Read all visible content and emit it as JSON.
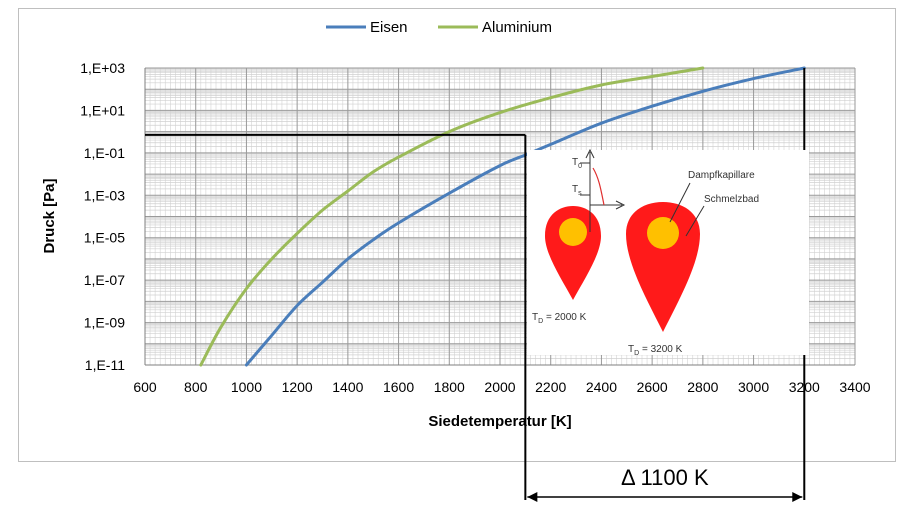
{
  "chart_data": {
    "type": "line",
    "xlabel": "Siedetemperatur [K]",
    "ylabel": "Druck [Pa]",
    "xlim": [
      600,
      3400
    ],
    "ylim_log10": [
      -11,
      3
    ],
    "y_scale": "log",
    "x_ticks": [
      600,
      800,
      1000,
      1200,
      1400,
      1600,
      1800,
      2000,
      2200,
      2400,
      2600,
      2800,
      3000,
      3200,
      3400
    ],
    "y_tick_labels": [
      "1,E-11",
      "1,E-09",
      "1,E-07",
      "1,E-05",
      "1,E-03",
      "1,E-01",
      "1,E+01",
      "1,E+03"
    ],
    "y_tick_exponents": [
      -11,
      -9,
      -7,
      -5,
      -3,
      -1,
      1,
      3
    ],
    "grid": true,
    "legend_position": "top-center",
    "series": [
      {
        "name": "Eisen",
        "color": "#4a7ebb",
        "x": [
          1000,
          1100,
          1200,
          1300,
          1400,
          1500,
          1600,
          1800,
          2000,
          2100,
          2200,
          2400,
          2600,
          2800,
          3000,
          3200
        ],
        "y_log10": [
          -11.0,
          -9.6,
          -8.2,
          -7.1,
          -6.0,
          -5.1,
          -4.3,
          -2.9,
          -1.6,
          -1.1,
          -0.6,
          0.4,
          1.2,
          1.9,
          2.5,
          3.0
        ]
      },
      {
        "name": "Aluminium",
        "color": "#9bbb59",
        "x": [
          820,
          900,
          1000,
          1100,
          1200,
          1300,
          1400,
          1500,
          1600,
          1800,
          2000,
          2200,
          2400,
          2600,
          2800
        ],
        "y_log10": [
          -11.0,
          -9.2,
          -7.4,
          -6.0,
          -4.8,
          -3.7,
          -2.8,
          -1.9,
          -1.2,
          0.0,
          0.9,
          1.6,
          2.2,
          2.6,
          3.0
        ]
      }
    ],
    "annotations": {
      "guide_pressure_log10": -0.15,
      "guide_x_points": [
        2100,
        3200
      ],
      "delta_label": "Δ 1100 K"
    },
    "inset": {
      "label_capillary": "Dampfkapillare",
      "label_meltpool": "Schmelzbad",
      "label_small": "T",
      "label_small_sub": "D",
      "label_small_value": " = 2000 K",
      "label_large": "T",
      "label_large_sub": "D",
      "label_large_value": " = 3200 K",
      "axis_label_top": "T",
      "axis_label_top_sub": "0",
      "axis_label_mid": "T",
      "axis_label_mid_sub": "s",
      "colors": {
        "melt": "#ff1a1a",
        "capillary": "#ffc000"
      }
    }
  }
}
